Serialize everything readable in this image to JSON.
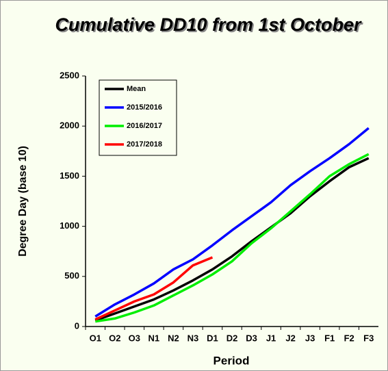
{
  "chart_data": {
    "type": "line",
    "title": "Cumulative DD10 from 1st October",
    "x_label": "Period",
    "y_label": "Degree Day (base 10)",
    "categories": [
      "O1",
      "O2",
      "O3",
      "N1",
      "N2",
      "N3",
      "D1",
      "D2",
      "D3",
      "J1",
      "J2",
      "J3",
      "F1",
      "F2",
      "F3"
    ],
    "series": [
      {
        "name": "Mean",
        "color": "#000000",
        "values": [
          60,
          130,
          200,
          270,
          360,
          460,
          570,
          700,
          850,
          990,
          1130,
          1300,
          1450,
          1590,
          1680
        ]
      },
      {
        "name": "2015/2016",
        "color": "#0000ff",
        "values": [
          100,
          220,
          320,
          430,
          570,
          670,
          810,
          960,
          1100,
          1240,
          1410,
          1550,
          1680,
          1820,
          1980
        ]
      },
      {
        "name": "2016/2017",
        "color": "#00ee00",
        "values": [
          50,
          80,
          140,
          210,
          310,
          410,
          520,
          650,
          830,
          980,
          1150,
          1320,
          1500,
          1620,
          1720
        ]
      },
      {
        "name": "2017/2018",
        "color": "#ff0000",
        "values": [
          70,
          160,
          250,
          320,
          440,
          610,
          690,
          null,
          null,
          null,
          null,
          null,
          null,
          null,
          null
        ]
      }
    ],
    "ylim": [
      0,
      2500
    ],
    "yticks": [
      0,
      500,
      1000,
      1500,
      2000,
      2500
    ],
    "grid": false,
    "legend": "upper left"
  }
}
